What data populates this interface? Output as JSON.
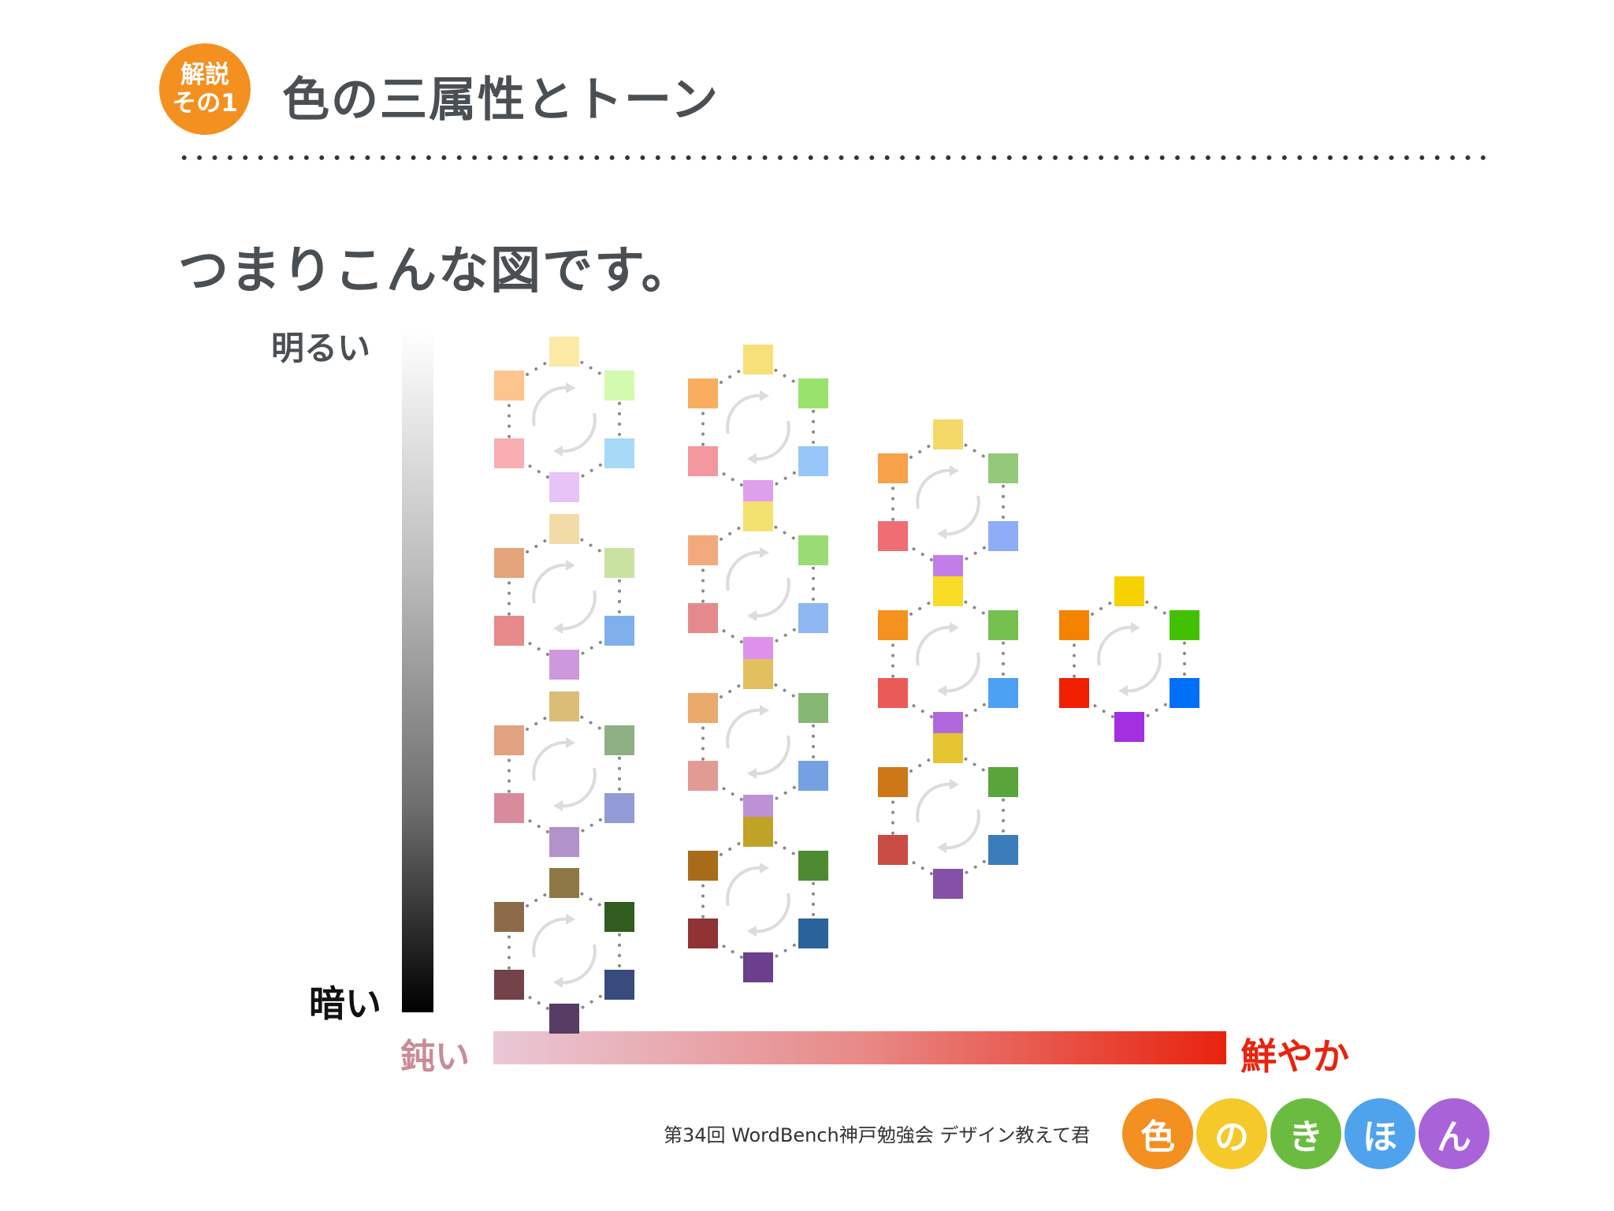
{
  "header": {
    "badge_line1": "解説",
    "badge_line2": "その1",
    "badge_color": "#f39020",
    "title": "色の三属性とトーン"
  },
  "subtitle": "つまりこんな図です。",
  "axes": {
    "bright_label": "明るい",
    "dark_label": "暗い",
    "dull_label": "鈍い",
    "vivid_label": "鮮やか"
  },
  "wheel_icon": "circular-arrows-icon",
  "tone_wheels": [
    {
      "colors": [
        "#fde9a6",
        "#d2fbb0",
        "#a8d9f7",
        "#e7c3f6",
        "#f9aeb4",
        "#fdc48e"
      ]
    },
    {
      "colors": [
        "#f1dba7",
        "#c9e2a2",
        "#7fb0ec",
        "#cd99dc",
        "#e68a8c",
        "#e4a57a"
      ]
    },
    {
      "colors": [
        "#dcbd78",
        "#8eb084",
        "#939bd6",
        "#b193c9",
        "#d98b9c",
        "#e1a281"
      ]
    },
    {
      "colors": [
        "#8e7845",
        "#315c1f",
        "#374b7d",
        "#573c63",
        "#744249",
        "#8e6b48"
      ]
    },
    {
      "colors": [
        "#f6e07a",
        "#99e36c",
        "#99c6f8",
        "#dea0ec",
        "#f2989e",
        "#f9ad5e"
      ]
    },
    {
      "colors": [
        "#f3e26f",
        "#9bdb73",
        "#8fb7f1",
        "#dd91ec",
        "#e48a8d",
        "#f2aa7c"
      ]
    },
    {
      "colors": [
        "#e2c05f",
        "#86b874",
        "#75a1e2",
        "#bc91d5",
        "#e29a95",
        "#e9aa6c"
      ]
    },
    {
      "colors": [
        "#bfa226",
        "#4e8a30",
        "#2a6399",
        "#6b3f8c",
        "#8f3334",
        "#a76b19"
      ]
    },
    {
      "colors": [
        "#f3d967",
        "#94c97c",
        "#8fadf6",
        "#c27ee8",
        "#ee6e74",
        "#f7a14b"
      ]
    },
    {
      "colors": [
        "#f9dc28",
        "#76c04f",
        "#4ca1f4",
        "#b168dc",
        "#e95a57",
        "#f4911f"
      ]
    },
    {
      "colors": [
        "#e4c52f",
        "#5aa53b",
        "#3a7dba",
        "#8451a6",
        "#c94d45",
        "#cd7717"
      ]
    },
    {
      "colors": [
        "#f5d200",
        "#41c100",
        "#006ff7",
        "#a22fe0",
        "#ef1f00",
        "#f58200"
      ]
    }
  ],
  "footer": {
    "event_text": "第34回 WordBench神戸勉強会 デザイン教えて君",
    "logo": [
      {
        "char": "色",
        "color": "#f39020"
      },
      {
        "char": "の",
        "color": "#f5c92a"
      },
      {
        "char": "き",
        "color": "#6cbb41"
      },
      {
        "char": "ほ",
        "color": "#4ea3ec"
      },
      {
        "char": "ん",
        "color": "#a863d8"
      }
    ]
  }
}
